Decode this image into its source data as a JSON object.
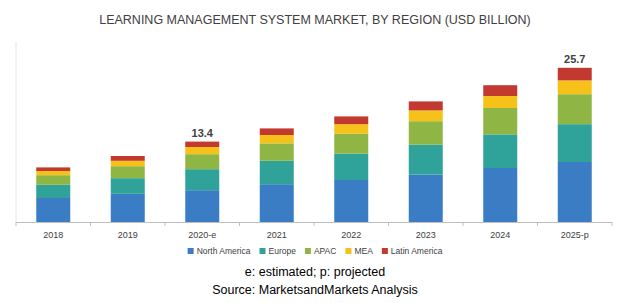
{
  "chart_data": {
    "type": "bar",
    "stacked": true,
    "title": "LEARNING MANAGEMENT SYSTEM MARKET, BY REGION (USD BILLION)",
    "categories": [
      "2018",
      "2019",
      "2020-e",
      "2021",
      "2022",
      "2023",
      "2024",
      "2025-p"
    ],
    "series": [
      {
        "name": "North America",
        "color": "#3b7dc4",
        "values": [
          4.0,
          4.7,
          5.3,
          6.3,
          7.0,
          7.9,
          9.0,
          10.0
        ]
      },
      {
        "name": "Europe",
        "color": "#2fa39a",
        "values": [
          2.2,
          2.6,
          3.5,
          3.9,
          4.4,
          5.0,
          5.6,
          6.3
        ]
      },
      {
        "name": "APAC",
        "color": "#8fb644",
        "values": [
          1.6,
          2.0,
          2.5,
          2.9,
          3.3,
          3.9,
          4.4,
          5.0
        ]
      },
      {
        "name": "MEA",
        "color": "#f6c21a",
        "values": [
          0.7,
          0.9,
          1.2,
          1.4,
          1.6,
          1.8,
          2.0,
          2.3
        ]
      },
      {
        "name": "Latin America",
        "color": "#c23a2f",
        "values": [
          0.6,
          0.8,
          0.9,
          1.1,
          1.3,
          1.5,
          1.8,
          2.1
        ]
      }
    ],
    "annotations": [
      {
        "category": "2020-e",
        "text": "13.4"
      },
      {
        "category": "2025-p",
        "text": "25.7"
      }
    ],
    "footnotes": [
      "e: estimated; p: projected",
      "Source: MarketsandMarkets Analysis"
    ],
    "ylim": [
      0,
      30
    ],
    "grid": false,
    "legend": "bottom",
    "tick_labels": "x"
  }
}
